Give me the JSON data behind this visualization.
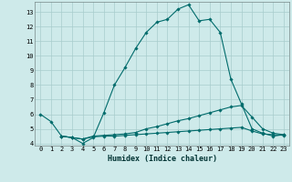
{
  "xlabel": "Humidex (Indice chaleur)",
  "bg_color": "#ceeaea",
  "grid_color": "#a8cccc",
  "line_color": "#006b6b",
  "series": [
    {
      "x": [
        0,
        1,
        2,
        3,
        4,
        5,
        6,
        7,
        8,
        9,
        10,
        11,
        12,
        13,
        14,
        15,
        16,
        17,
        18,
        19,
        20,
        21,
        22,
        23
      ],
      "y": [
        6.0,
        5.5,
        4.5,
        4.4,
        4.0,
        4.4,
        6.1,
        8.0,
        9.2,
        10.5,
        11.6,
        12.3,
        12.5,
        13.2,
        13.5,
        12.4,
        12.5,
        11.6,
        8.4,
        6.7,
        5.0,
        4.7,
        4.5,
        4.6
      ]
    },
    {
      "x": [
        2,
        3,
        4,
        5,
        6,
        7,
        8,
        9,
        10,
        11,
        12,
        13,
        14,
        15,
        16,
        17,
        18,
        19,
        20,
        21,
        22,
        23
      ],
      "y": [
        4.5,
        4.4,
        4.3,
        4.5,
        4.55,
        4.6,
        4.65,
        4.75,
        5.0,
        5.15,
        5.35,
        5.55,
        5.7,
        5.9,
        6.1,
        6.3,
        6.5,
        6.6,
        5.8,
        5.0,
        4.7,
        4.6
      ]
    },
    {
      "x": [
        2,
        3,
        4,
        5,
        6,
        7,
        8,
        9,
        10,
        11,
        12,
        13,
        14,
        15,
        16,
        17,
        18,
        19,
        20,
        21,
        22,
        23
      ],
      "y": [
        4.5,
        4.4,
        4.3,
        4.45,
        4.5,
        4.5,
        4.55,
        4.6,
        4.65,
        4.7,
        4.75,
        4.8,
        4.85,
        4.9,
        4.95,
        5.0,
        5.05,
        5.1,
        4.85,
        4.65,
        4.6,
        4.55
      ]
    }
  ],
  "ylim": [
    3.85,
    13.7
  ],
  "xlim": [
    -0.5,
    23.5
  ],
  "yticks": [
    4,
    5,
    6,
    7,
    8,
    9,
    10,
    11,
    12,
    13
  ],
  "xticks": [
    0,
    1,
    2,
    3,
    4,
    5,
    6,
    7,
    8,
    9,
    10,
    11,
    12,
    13,
    14,
    15,
    16,
    17,
    18,
    19,
    20,
    21,
    22,
    23
  ],
  "xtick_labels": [
    "0",
    "1",
    "2",
    "3",
    "4",
    "5",
    "6",
    "7",
    "8",
    "9",
    "10",
    "11",
    "12",
    "13",
    "14",
    "15",
    "16",
    "17",
    "18",
    "19",
    "20",
    "21",
    "22",
    "23"
  ],
  "ytick_labels": [
    "4",
    "5",
    "6",
    "7",
    "8",
    "9",
    "10",
    "11",
    "12",
    "13"
  ],
  "xlabel_fontsize": 6.0,
  "tick_fontsize": 5.0
}
